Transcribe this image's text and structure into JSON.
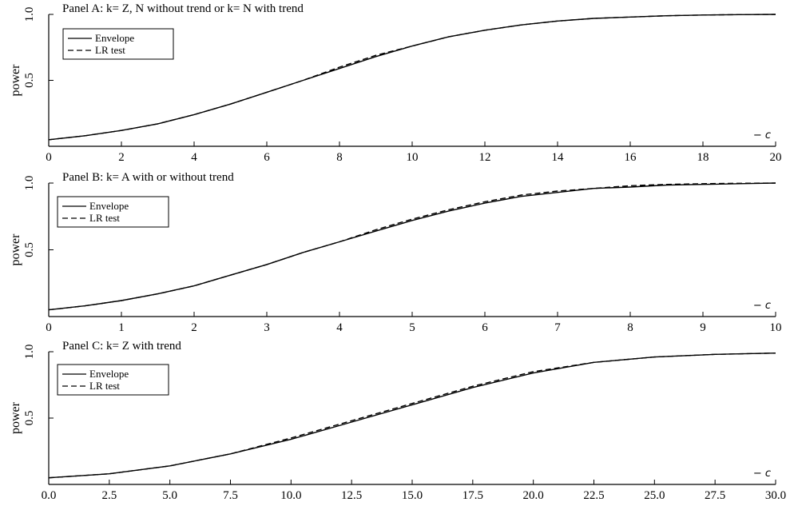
{
  "chart_data": [
    {
      "type": "line",
      "title": "Panel A: k= Z, N without trend or k= N with trend",
      "ylabel": "power",
      "xlabel": "",
      "axis_note": "− c",
      "xlim": [
        0,
        20
      ],
      "ylim": [
        0,
        1.0
      ],
      "x_ticks": [
        0,
        2,
        4,
        6,
        8,
        10,
        12,
        14,
        16,
        18,
        20
      ],
      "x_tick_labels": [
        "0",
        "2",
        "4",
        "6",
        "8",
        "10",
        "12",
        "14",
        "16",
        "18",
        "20"
      ],
      "y_ticks": [
        0.5,
        1.0
      ],
      "y_tick_labels": [
        "0.5",
        "1.0"
      ],
      "legend": {
        "position": "top-left",
        "entries": [
          "Envelope",
          "LR test"
        ]
      },
      "x": [
        0,
        1,
        2,
        3,
        4,
        5,
        6,
        7,
        8,
        9,
        10,
        11,
        12,
        13,
        14,
        15,
        16,
        17,
        18,
        19,
        20
      ],
      "series": [
        {
          "name": "Envelope",
          "style": "solid",
          "values": [
            0.05,
            0.08,
            0.12,
            0.17,
            0.24,
            0.32,
            0.41,
            0.5,
            0.59,
            0.68,
            0.76,
            0.83,
            0.88,
            0.92,
            0.95,
            0.97,
            0.98,
            0.99,
            0.995,
            0.998,
            1.0
          ]
        },
        {
          "name": "LR test",
          "style": "dashed",
          "values": [
            0.05,
            0.08,
            0.12,
            0.17,
            0.24,
            0.32,
            0.41,
            0.5,
            0.6,
            0.69,
            0.76,
            0.83,
            0.88,
            0.92,
            0.95,
            0.97,
            0.98,
            0.99,
            0.995,
            0.998,
            1.0
          ]
        }
      ]
    },
    {
      "type": "line",
      "title": "Panel B: k= A with or without trend",
      "ylabel": "power",
      "xlabel": "",
      "axis_note": "− c",
      "xlim": [
        0,
        10
      ],
      "ylim": [
        0,
        1.0
      ],
      "x_ticks": [
        0,
        1,
        2,
        3,
        4,
        5,
        6,
        7,
        8,
        9,
        10
      ],
      "x_tick_labels": [
        "0",
        "1",
        "2",
        "3",
        "4",
        "5",
        "6",
        "7",
        "8",
        "9",
        "10"
      ],
      "y_ticks": [
        0.5,
        1.0
      ],
      "y_tick_labels": [
        "0.5",
        "1.0"
      ],
      "legend": {
        "position": "top-left",
        "entries": [
          "Envelope",
          "LR test"
        ]
      },
      "x": [
        0,
        0.5,
        1,
        1.5,
        2,
        2.5,
        3,
        3.5,
        4,
        4.5,
        5,
        5.5,
        6,
        6.5,
        7,
        7.5,
        8,
        8.5,
        9,
        9.5,
        10
      ],
      "series": [
        {
          "name": "Envelope",
          "style": "solid",
          "values": [
            0.05,
            0.08,
            0.12,
            0.17,
            0.23,
            0.31,
            0.39,
            0.48,
            0.56,
            0.64,
            0.72,
            0.79,
            0.85,
            0.9,
            0.93,
            0.96,
            0.97,
            0.985,
            0.99,
            0.995,
            1.0
          ]
        },
        {
          "name": "LR test",
          "style": "dashed",
          "values": [
            0.05,
            0.08,
            0.12,
            0.17,
            0.23,
            0.31,
            0.39,
            0.48,
            0.56,
            0.65,
            0.73,
            0.8,
            0.86,
            0.91,
            0.94,
            0.96,
            0.98,
            0.99,
            0.995,
            0.998,
            1.0
          ]
        }
      ]
    },
    {
      "type": "line",
      "title": "Panel C: k= Z with trend",
      "ylabel": "power",
      "xlabel": "",
      "axis_note": "− c",
      "xlim": [
        0,
        30
      ],
      "ylim": [
        0,
        1.0
      ],
      "x_ticks": [
        0,
        2.5,
        5,
        7.5,
        10,
        12.5,
        15,
        17.5,
        20,
        22.5,
        25,
        27.5,
        30
      ],
      "x_tick_labels": [
        "0.0",
        "2.5",
        "5.0",
        "7.5",
        "10.0",
        "12.5",
        "15.0",
        "17.5",
        "20.0",
        "22.5",
        "25.0",
        "27.5",
        "30.0"
      ],
      "y_ticks": [
        0.5,
        1.0
      ],
      "y_tick_labels": [
        "0.5",
        "1.0"
      ],
      "legend": {
        "position": "top-left",
        "entries": [
          "Envelope",
          "LR test"
        ]
      },
      "x": [
        0,
        2.5,
        5,
        7.5,
        10,
        12.5,
        15,
        17.5,
        20,
        22.5,
        25,
        27.5,
        30
      ],
      "series": [
        {
          "name": "Envelope",
          "style": "solid",
          "values": [
            0.05,
            0.08,
            0.14,
            0.23,
            0.34,
            0.47,
            0.6,
            0.73,
            0.84,
            0.92,
            0.96,
            0.98,
            0.99
          ]
        },
        {
          "name": "LR test",
          "style": "dashed",
          "values": [
            0.05,
            0.08,
            0.14,
            0.23,
            0.35,
            0.48,
            0.61,
            0.74,
            0.85,
            0.92,
            0.96,
            0.98,
            0.99
          ]
        }
      ]
    }
  ]
}
